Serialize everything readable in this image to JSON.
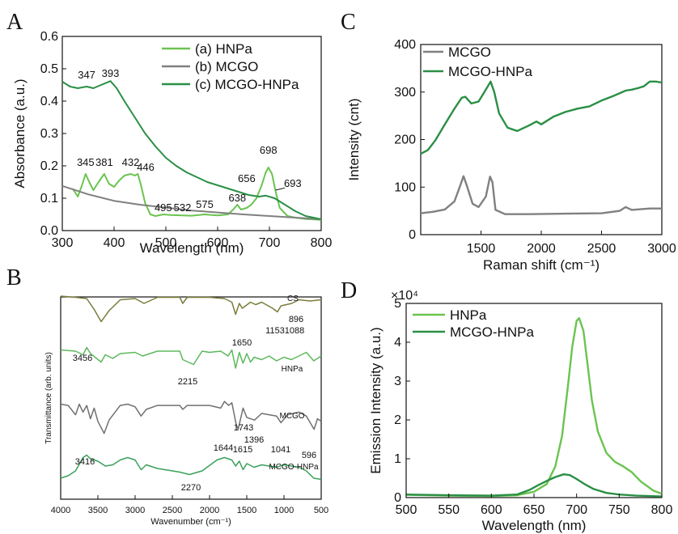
{
  "colors": {
    "light_green": "#6ac450",
    "dark_green": "#2a8f45",
    "gray": "#808080",
    "olive": "#7a7d3c",
    "ir_green": "#5cb85c",
    "ir_gray": "#707070",
    "ir_teal": "#3aa05a"
  },
  "panels": {
    "A": {
      "letter": "A"
    },
    "B": {
      "letter": "B"
    },
    "C": {
      "letter": "C"
    },
    "D": {
      "letter": "D"
    }
  },
  "chart_data": [
    {
      "panel": "A",
      "type": "line",
      "xlabel": "Wavelength (nm)",
      "ylabel": "Absorbance (a.u.)",
      "xlim": [
        300,
        800
      ],
      "ylim": [
        0.0,
        0.6
      ],
      "xticks": [
        "300",
        "400",
        "500",
        "600",
        "700",
        "800"
      ],
      "yticks": [
        "0.0",
        "0.1",
        "0.2",
        "0.3",
        "0.4",
        "0.5",
        "0.6"
      ],
      "legend": [
        "(a) HNPa",
        "(b) MCGO",
        "(c) MCGO-HNPa"
      ],
      "legend_position": "top-right",
      "series": [
        {
          "name": "(a) HNPa",
          "color": "#6ac450",
          "x": [
            320,
            330,
            338,
            345,
            352,
            360,
            370,
            381,
            390,
            400,
            410,
            420,
            432,
            440,
            446,
            452,
            460,
            470,
            480,
            495,
            510,
            532,
            550,
            575,
            600,
            620,
            630,
            638,
            645,
            656,
            665,
            675,
            685,
            693,
            698,
            705,
            712,
            720,
            735,
            750,
            770,
            800
          ],
          "y": [
            0.13,
            0.105,
            0.14,
            0.175,
            0.15,
            0.125,
            0.15,
            0.175,
            0.145,
            0.135,
            0.155,
            0.17,
            0.175,
            0.17,
            0.175,
            0.14,
            0.085,
            0.05,
            0.045,
            0.05,
            0.048,
            0.047,
            0.046,
            0.05,
            0.047,
            0.05,
            0.065,
            0.08,
            0.065,
            0.07,
            0.08,
            0.1,
            0.14,
            0.18,
            0.195,
            0.175,
            0.12,
            0.07,
            0.045,
            0.04,
            0.036,
            0.033
          ]
        },
        {
          "name": "(b) MCGO",
          "color": "#808080",
          "x": [
            300,
            350,
            400,
            450,
            500,
            550,
            600,
            650,
            700,
            750,
            800
          ],
          "y": [
            0.138,
            0.112,
            0.092,
            0.08,
            0.071,
            0.062,
            0.056,
            0.05,
            0.045,
            0.04,
            0.035
          ]
        },
        {
          "name": "(c) MCGO-HNPa",
          "color": "#2a8f45",
          "x": [
            300,
            315,
            330,
            347,
            360,
            375,
            393,
            405,
            420,
            440,
            460,
            480,
            500,
            520,
            540,
            560,
            580,
            600,
            620,
            640,
            660,
            680,
            693,
            710,
            730,
            750,
            770,
            800
          ],
          "y": [
            0.46,
            0.445,
            0.44,
            0.445,
            0.44,
            0.45,
            0.462,
            0.44,
            0.4,
            0.35,
            0.3,
            0.26,
            0.225,
            0.2,
            0.18,
            0.165,
            0.15,
            0.14,
            0.13,
            0.12,
            0.11,
            0.105,
            0.108,
            0.1,
            0.08,
            0.06,
            0.045,
            0.035
          ]
        }
      ],
      "annotations": [
        {
          "text": "347",
          "x": 347,
          "y": 0.47
        },
        {
          "text": "393",
          "x": 393,
          "y": 0.475
        },
        {
          "text": "345",
          "x": 345,
          "y": 0.2
        },
        {
          "text": "381",
          "x": 381,
          "y": 0.2
        },
        {
          "text": "432",
          "x": 432,
          "y": 0.2
        },
        {
          "text": "446",
          "x": 461,
          "y": 0.185
        },
        {
          "text": "495",
          "x": 495,
          "y": 0.06
        },
        {
          "text": "532",
          "x": 532,
          "y": 0.06
        },
        {
          "text": "575",
          "x": 575,
          "y": 0.07
        },
        {
          "text": "638",
          "x": 638,
          "y": 0.09
        },
        {
          "text": "656",
          "x": 656,
          "y": 0.15
        },
        {
          "text": "698",
          "x": 698,
          "y": 0.238
        },
        {
          "text": "693",
          "x": 745,
          "y": 0.135
        }
      ]
    },
    {
      "panel": "B",
      "type": "line",
      "xlabel": "Wavenumber (cm⁻¹)",
      "ylabel": "Transmittance (arb. units)",
      "xlim": [
        4000,
        500
      ],
      "xticks": [
        "4000",
        "3500",
        "3000",
        "2500",
        "2000",
        "1500",
        "1000",
        "500"
      ],
      "series": [
        {
          "name": "CS",
          "color": "#7a7d3c",
          "x": [
            4000,
            3800,
            3650,
            3550,
            3456,
            3350,
            3200,
            3000,
            2880,
            2700,
            2400,
            2360,
            2300,
            2000,
            1800,
            1700,
            1650,
            1600,
            1560,
            1450,
            1380,
            1300,
            1153,
            1088,
            1040,
            896,
            800,
            650,
            500
          ],
          "y": [
            0.92,
            0.9,
            0.88,
            0.7,
            0.5,
            0.68,
            0.86,
            0.88,
            0.8,
            0.9,
            0.9,
            0.8,
            0.9,
            0.9,
            0.88,
            0.82,
            0.62,
            0.8,
            0.72,
            0.82,
            0.78,
            0.82,
            0.72,
            0.66,
            0.76,
            0.8,
            0.86,
            0.84,
            0.86
          ]
        },
        {
          "name": "HNPa",
          "color": "#5cb85c",
          "x": [
            4000,
            3800,
            3700,
            3650,
            3600,
            3456,
            3400,
            3300,
            3200,
            3000,
            2900,
            2700,
            2400,
            2360,
            2215,
            2100,
            2000,
            1850,
            1750,
            1700,
            1650,
            1600,
            1550,
            1500,
            1450,
            1400,
            1300,
            1200,
            1100,
            1000,
            900,
            800,
            700,
            600,
            500
          ],
          "y": [
            0.9,
            0.88,
            0.82,
            0.94,
            0.84,
            0.7,
            0.82,
            0.76,
            0.84,
            0.86,
            0.8,
            0.88,
            0.88,
            0.74,
            0.66,
            0.88,
            0.86,
            0.88,
            0.8,
            0.9,
            0.6,
            0.86,
            0.68,
            0.84,
            0.7,
            0.78,
            0.74,
            0.8,
            0.72,
            0.78,
            0.74,
            0.8,
            0.86,
            0.72,
            0.8
          ]
        },
        {
          "name": "MCGO",
          "color": "#707070",
          "x": [
            4000,
            3900,
            3800,
            3750,
            3700,
            3650,
            3600,
            3550,
            3500,
            3416,
            3350,
            3200,
            3100,
            3000,
            2920,
            2850,
            2700,
            2400,
            2360,
            2300,
            2000,
            1850,
            1800,
            1743,
            1700,
            1644,
            1615,
            1550,
            1500,
            1396,
            1300,
            1200,
            1100,
            1041,
            950,
            800,
            700,
            596,
            550,
            500
          ],
          "y": [
            0.86,
            0.84,
            0.7,
            0.86,
            0.74,
            0.84,
            0.64,
            0.8,
            0.6,
            0.42,
            0.62,
            0.84,
            0.86,
            0.82,
            0.68,
            0.78,
            0.84,
            0.84,
            0.78,
            0.84,
            0.84,
            0.8,
            0.9,
            0.84,
            0.88,
            0.56,
            0.48,
            0.8,
            0.66,
            0.62,
            0.72,
            0.7,
            0.68,
            0.58,
            0.7,
            0.74,
            0.68,
            0.48,
            0.64,
            0.6
          ]
        },
        {
          "name": "MCGO-HNPa",
          "color": "#3aa05a",
          "x": [
            4000,
            3900,
            3800,
            3700,
            3650,
            3600,
            3500,
            3400,
            3300,
            3200,
            3100,
            3000,
            2920,
            2850,
            2700,
            2400,
            2270,
            2100,
            1900,
            1800,
            1700,
            1650,
            1600,
            1550,
            1500,
            1400,
            1300,
            1200,
            1100,
            1000,
            900,
            800,
            700,
            600,
            500
          ],
          "y": [
            0.52,
            0.56,
            0.64,
            0.86,
            0.9,
            0.84,
            0.8,
            0.72,
            0.74,
            0.82,
            0.86,
            0.82,
            0.66,
            0.74,
            0.68,
            0.62,
            0.58,
            0.64,
            0.82,
            0.86,
            0.82,
            0.72,
            0.8,
            0.66,
            0.76,
            0.7,
            0.74,
            0.72,
            0.7,
            0.74,
            0.72,
            0.7,
            0.64,
            0.52,
            0.5
          ]
        }
      ],
      "annotations": [
        {
          "text": "CS"
        },
        {
          "text": "1153"
        },
        {
          "text": "896"
        },
        {
          "text": "1088"
        },
        {
          "text": "1650"
        },
        {
          "text": "3456"
        },
        {
          "text": "2215"
        },
        {
          "text": "HNPa"
        },
        {
          "text": "MCGO"
        },
        {
          "text": "1743"
        },
        {
          "text": "1396"
        },
        {
          "text": "1644"
        },
        {
          "text": "1615"
        },
        {
          "text": "1041"
        },
        {
          "text": "596"
        },
        {
          "text": "3416"
        },
        {
          "text": "MCGO-HNPa"
        },
        {
          "text": "2270"
        }
      ]
    },
    {
      "panel": "C",
      "type": "line",
      "xlabel": "Raman shift (cm⁻¹)",
      "ylabel": "Intensity (cnt)",
      "xlim": [
        1000,
        3000
      ],
      "ylim": [
        0,
        400
      ],
      "xticks": [
        "1500",
        "2000",
        "2500",
        "3000"
      ],
      "yticks": [
        "0",
        "100",
        "200",
        "300",
        "400"
      ],
      "legend": [
        "MCGO",
        "MCGO-HNPa"
      ],
      "legend_position": "top-left",
      "series": [
        {
          "name": "MCGO",
          "color": "#808080",
          "x": [
            1000,
            1100,
            1200,
            1280,
            1330,
            1355,
            1380,
            1430,
            1480,
            1540,
            1575,
            1595,
            1620,
            1700,
            1900,
            2200,
            2500,
            2650,
            2700,
            2750,
            2900,
            3000
          ],
          "y": [
            45,
            48,
            53,
            70,
            105,
            123,
            105,
            65,
            58,
            80,
            122,
            110,
            52,
            43,
            43,
            44,
            45,
            50,
            58,
            52,
            55,
            55
          ]
        },
        {
          "name": "MCGO-HNPa",
          "color": "#2a8f45",
          "x": [
            1000,
            1060,
            1120,
            1200,
            1280,
            1340,
            1370,
            1420,
            1480,
            1540,
            1580,
            1610,
            1650,
            1720,
            1800,
            1900,
            1960,
            2000,
            2100,
            2200,
            2300,
            2400,
            2500,
            2600,
            2700,
            2750,
            2800,
            2850,
            2900,
            2950,
            3000
          ],
          "y": [
            170,
            178,
            198,
            232,
            265,
            288,
            290,
            276,
            280,
            305,
            322,
            300,
            255,
            225,
            218,
            230,
            238,
            232,
            248,
            258,
            265,
            270,
            282,
            292,
            303,
            305,
            308,
            312,
            322,
            322,
            320
          ]
        }
      ]
    },
    {
      "panel": "D",
      "type": "line",
      "xlabel": "Wavelength (nm)",
      "ylabel": "Emission Intensity (a.u.)",
      "xlim": [
        500,
        800
      ],
      "ylim": [
        0,
        5
      ],
      "scale_label": "×10⁴",
      "xticks": [
        "500",
        "550",
        "600",
        "650",
        "700",
        "750",
        "800"
      ],
      "yticks": [
        "0",
        "1",
        "2",
        "3",
        "4",
        "5"
      ],
      "legend": [
        "HNPa",
        "MCGO-HNPa"
      ],
      "legend_position": "top-left",
      "series": [
        {
          "name": "HNPa",
          "color": "#6ac450",
          "x": [
            500,
            550,
            600,
            630,
            650,
            665,
            675,
            683,
            690,
            695,
            700,
            703,
            708,
            713,
            718,
            725,
            735,
            745,
            755,
            765,
            775,
            790,
            800
          ],
          "y": [
            0.07,
            0.05,
            0.04,
            0.06,
            0.15,
            0.35,
            0.8,
            1.6,
            2.9,
            3.9,
            4.55,
            4.62,
            4.3,
            3.4,
            2.5,
            1.7,
            1.15,
            0.92,
            0.8,
            0.65,
            0.42,
            0.18,
            0.1
          ]
        },
        {
          "name": "MCGO-HNPa",
          "color": "#2a8f45",
          "x": [
            500,
            550,
            600,
            630,
            645,
            655,
            665,
            675,
            685,
            692,
            700,
            710,
            720,
            735,
            750,
            770,
            800
          ],
          "y": [
            0.08,
            0.06,
            0.05,
            0.08,
            0.2,
            0.32,
            0.43,
            0.53,
            0.6,
            0.58,
            0.48,
            0.34,
            0.22,
            0.12,
            0.08,
            0.05,
            0.03
          ]
        }
      ]
    }
  ]
}
